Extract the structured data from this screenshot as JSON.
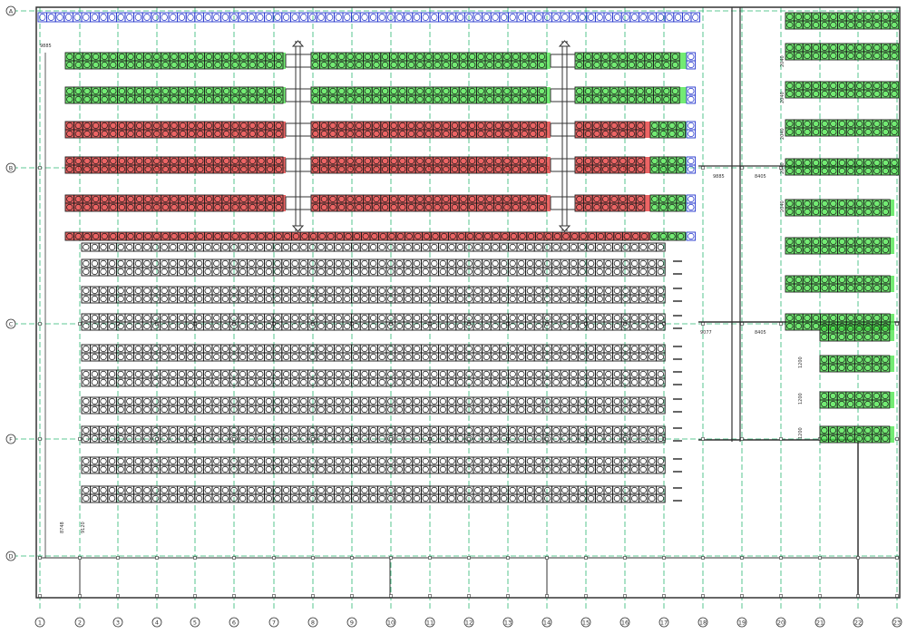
{
  "colors": {
    "background": "#ffffff",
    "outline": "#333333",
    "grid_line": "#2bb673",
    "rack_green": "#44e444",
    "rack_red": "#e63030",
    "rack_blue": "#2233cc",
    "rack_black": "#111111",
    "label": "#333333"
  },
  "grid": {
    "column_labels": [
      "1",
      "2",
      "3",
      "4",
      "5",
      "6",
      "7",
      "8",
      "9",
      "10",
      "11",
      "12",
      "13",
      "14",
      "15",
      "16",
      "17",
      "18",
      "19",
      "20",
      "21",
      "22",
      "23"
    ],
    "row_labels": [
      "A",
      "B",
      "C",
      "F",
      "D"
    ]
  },
  "legend": {},
  "dimension_labels": {
    "top_corridor": "9885",
    "corridor_b": "8405",
    "corridor_c_left": "9077",
    "corridor_c_right": "8405",
    "left_bay": "8748",
    "left_lower": "9120",
    "bay_a": "2040",
    "bay_b": "1200"
  },
  "icons": {
    "column_bubble": "grid-axis-bubble-icon",
    "arrow": "double-arrow-icon",
    "rack": "rack-unit-icon"
  }
}
